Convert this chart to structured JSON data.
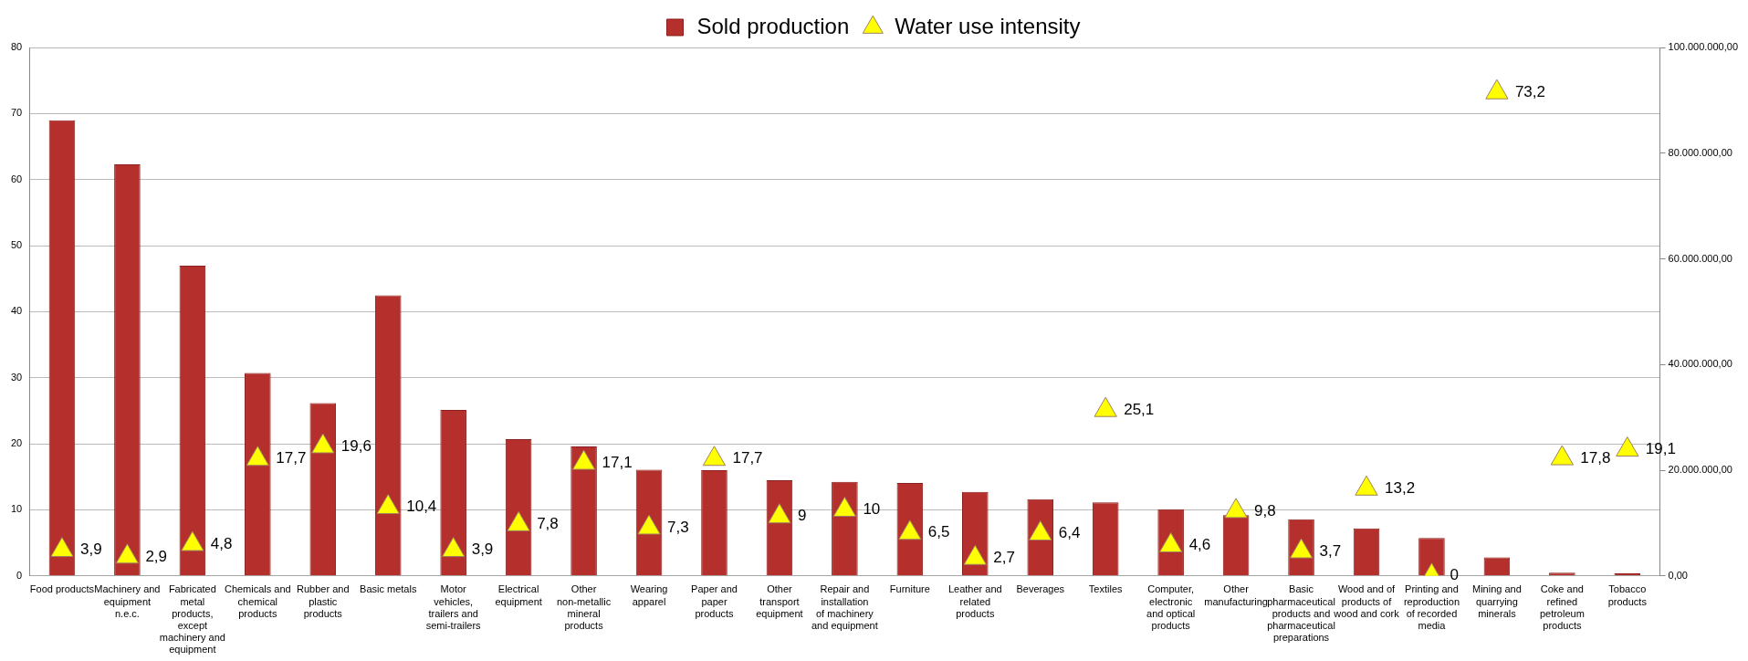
{
  "chart_data": {
    "type": "bar",
    "categories": [
      "Food products",
      "Machinery and equipment n.e.c.",
      "Fabricated metal products, except machinery and equipment",
      "Chemicals and chemical products",
      "Rubber and plastic products",
      "Basic metals",
      "Motor vehicles, trailers and semi-trailers",
      "Electrical equipment",
      "Other non-metallic mineral products",
      "Wearing apparel",
      "Paper and paper products",
      "Other transport equipment",
      "Repair and installation of machinery and equipment",
      "Furniture",
      "Leather and related products",
      "Beverages",
      "Textiles",
      "Computer, electronic and optical products",
      "Other manufacturing",
      "Basic pharmaceutical products and pharmaceutical preparations",
      "Wood and of products of wood and cork",
      "Printing and reproduction of recorded media",
      "Mining and quarrying minerals",
      "Coke and refined petroleum products",
      "Tobacco products"
    ],
    "series": [
      {
        "name": "Sold production",
        "axis": "y2",
        "color": "#b52f2c",
        "values": [
          86200000,
          77900000,
          58700000,
          38400000,
          32700000,
          53100000,
          31400000,
          25900000,
          24500000,
          20100000,
          20000000,
          18100000,
          17800000,
          17600000,
          15900000,
          14500000,
          13900000,
          12600000,
          11500000,
          10700000,
          9000000,
          7200000,
          3500000,
          600000,
          500000
        ]
      },
      {
        "name": "Water use intensity",
        "type": "scatter",
        "axis": "y",
        "color": "#ffff00",
        "marker": "triangle",
        "x": [
          "Food products",
          "Machinery and equipment n.e.c.",
          "Fabricated metal products, except machinery and equipment",
          "Chemicals and chemical products",
          "Rubber and plastic products",
          "Basic metals",
          "Motor vehicles, trailers and semi-trailers",
          "Electrical equipment",
          "Other non-metallic mineral products",
          "Wearing apparel",
          "Paper and paper products",
          "Other transport equipment",
          "Repair and installation of machinery and equipment",
          "Furniture",
          "Leather and related products",
          "Beverages",
          "Textiles",
          "Computer, electronic and optical products",
          "Other manufacturing",
          "Basic pharmaceutical products and pharmaceutical preparations",
          "Wood and of products of wood and cork",
          "Printing and reproduction of recorded media",
          "Mining and quarrying minerals",
          "Coke and refined petroleum products",
          "Tobacco products"
        ],
        "values": [
          3.9,
          2.9,
          4.8,
          17.7,
          19.6,
          10.4,
          3.9,
          7.8,
          17.1,
          7.3,
          17.7,
          9,
          10,
          6.5,
          2.7,
          6.4,
          25.1,
          4.6,
          9.8,
          3.7,
          13.2,
          0,
          73.2,
          17.8,
          19.1
        ],
        "value_labels": [
          "3,9",
          "2,9",
          "4,8",
          "17,7",
          "19,6",
          "10,4",
          "3,9",
          "7,8",
          "17,1",
          "7,3",
          "17,7",
          "9",
          "10",
          "6,5",
          "2,7",
          "6,4",
          "25,1",
          "4,6",
          "9,8",
          "3,7",
          "13,2",
          "0",
          "73,2",
          "17,8",
          "19,1"
        ]
      }
    ],
    "ylim": [
      0,
      80
    ],
    "yticks": [
      0,
      10,
      20,
      30,
      40,
      50,
      60,
      70,
      80
    ],
    "y2lim": [
      0,
      100000000
    ],
    "y2ticks": [
      {
        "value": 0,
        "label": "0,00"
      },
      {
        "value": 20000000,
        "label": "20.000.000,00"
      },
      {
        "value": 40000000,
        "label": "40.000.000,00"
      },
      {
        "value": 60000000,
        "label": "60.000.000,00"
      },
      {
        "value": 80000000,
        "label": "80.000.000,00"
      },
      {
        "value": 100000000,
        "label": "100.000.000,00"
      }
    ],
    "grid": "y",
    "legend": "top"
  }
}
